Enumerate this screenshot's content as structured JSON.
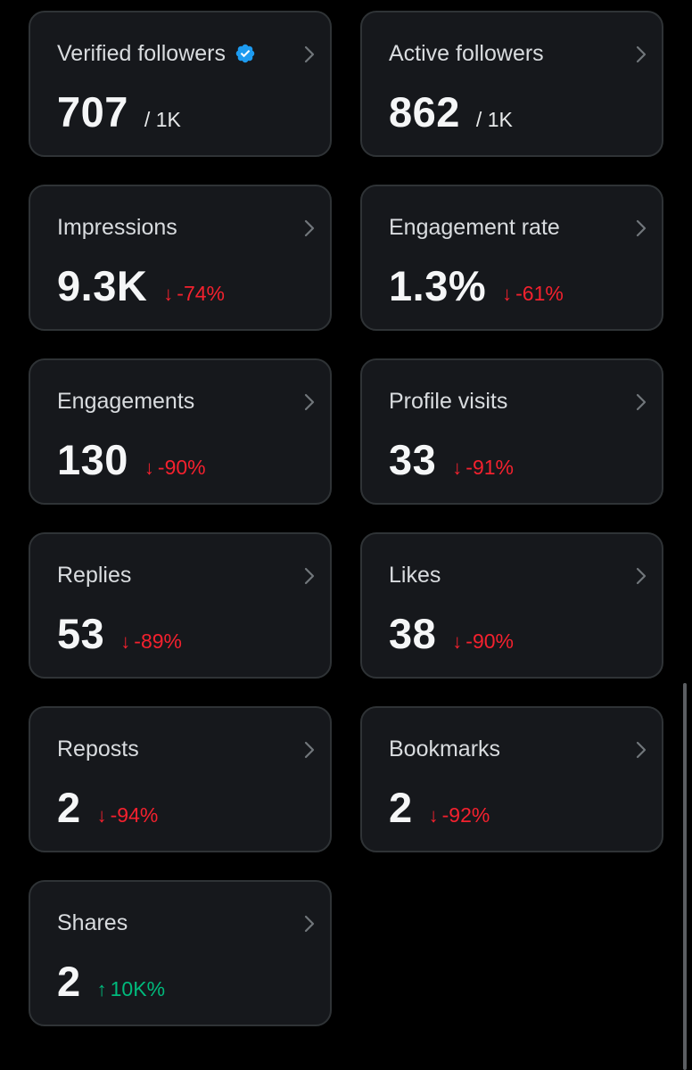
{
  "colors": {
    "background": "#000000",
    "card": "#16181c",
    "card_border": "#2f3336",
    "negative": "#f4212e",
    "positive": "#00ba7c",
    "verified": "#1d9bf0"
  },
  "cards": [
    {
      "id": "verified-followers",
      "title": "Verified followers",
      "value": "707",
      "sub": "/ 1K",
      "verified_icon": "verified-badge-icon"
    },
    {
      "id": "active-followers",
      "title": "Active followers",
      "value": "862",
      "sub": "/ 1K"
    },
    {
      "id": "impressions",
      "title": "Impressions",
      "value": "9.3K",
      "arrow": "↓",
      "change": "-74%",
      "direction": "down"
    },
    {
      "id": "engagement-rate",
      "title": "Engagement rate",
      "value": "1.3%",
      "arrow": "↓",
      "change": "-61%",
      "direction": "down"
    },
    {
      "id": "engagements",
      "title": "Engagements",
      "value": "130",
      "arrow": "↓",
      "change": "-90%",
      "direction": "down"
    },
    {
      "id": "profile-visits",
      "title": "Profile visits",
      "value": "33",
      "arrow": "↓",
      "change": "-91%",
      "direction": "down"
    },
    {
      "id": "replies",
      "title": "Replies",
      "value": "53",
      "arrow": "↓",
      "change": "-89%",
      "direction": "down"
    },
    {
      "id": "likes",
      "title": "Likes",
      "value": "38",
      "arrow": "↓",
      "change": "-90%",
      "direction": "down"
    },
    {
      "id": "reposts",
      "title": "Reposts",
      "value": "2",
      "arrow": "↓",
      "change": "-94%",
      "direction": "down"
    },
    {
      "id": "bookmarks",
      "title": "Bookmarks",
      "value": "2",
      "arrow": "↓",
      "change": "-92%",
      "direction": "down"
    },
    {
      "id": "shares",
      "title": "Shares",
      "value": "2",
      "arrow": "↑",
      "change": "10K%",
      "direction": "up"
    }
  ]
}
